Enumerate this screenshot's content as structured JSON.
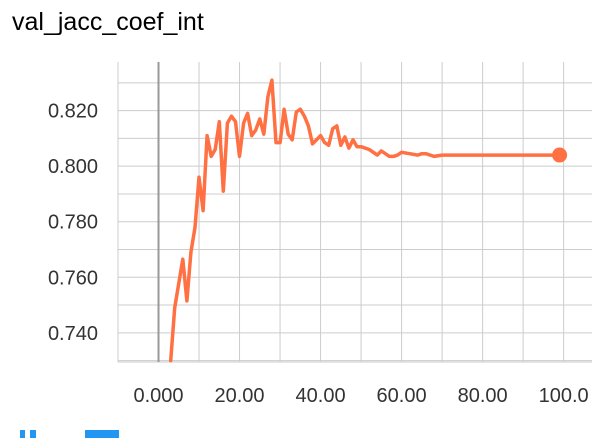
{
  "chart_title": "val_jacc_coef_int",
  "icons": {
    "fit_domain": "fit-domain-icon",
    "log_scale": "log-scale-icon",
    "expand": "expand-chart-icon"
  },
  "colors": {
    "series": "#ff7043",
    "grid": "#cccccc",
    "zero_line": "#999999",
    "toolbar": "#2196f3"
  },
  "chart_data": {
    "type": "line",
    "title": "val_jacc_coef_int",
    "xlabel": "",
    "ylabel": "",
    "xlim": [
      -10,
      107
    ],
    "ylim": [
      0.7295,
      0.8375
    ],
    "x_ticks": [
      0,
      20,
      40,
      60,
      80,
      100
    ],
    "x_tick_labels": [
      "0.000",
      "20.00",
      "40.00",
      "60.00",
      "80.00",
      "100.0"
    ],
    "y_ticks": [
      0.74,
      0.76,
      0.78,
      0.8,
      0.82
    ],
    "y_tick_labels": [
      "0.740",
      "0.760",
      "0.780",
      "0.800",
      "0.820"
    ],
    "grid": true,
    "series": [
      {
        "color": "#ff7043",
        "x": [
          3,
          4,
          6,
          7,
          8,
          9,
          10,
          11,
          12,
          13,
          14,
          15,
          16,
          17,
          18,
          19,
          20,
          21,
          22,
          23,
          24,
          25,
          26,
          27,
          28,
          29,
          30,
          31,
          32,
          33,
          34,
          35,
          36,
          37,
          38,
          39,
          40,
          41,
          42,
          43,
          44,
          45,
          46,
          47,
          48,
          49,
          50,
          52,
          54,
          55,
          57,
          58,
          59,
          60,
          62,
          64,
          65,
          66,
          68,
          70,
          75,
          80,
          85,
          90,
          95,
          99
        ],
        "y": [
          0.73,
          0.749,
          0.7665,
          0.7515,
          0.769,
          0.778,
          0.796,
          0.784,
          0.811,
          0.8035,
          0.806,
          0.816,
          0.791,
          0.8155,
          0.818,
          0.816,
          0.8035,
          0.8155,
          0.819,
          0.811,
          0.813,
          0.817,
          0.8115,
          0.825,
          0.831,
          0.8085,
          0.8085,
          0.8205,
          0.8115,
          0.8095,
          0.8195,
          0.8205,
          0.818,
          0.8145,
          0.808,
          0.8095,
          0.811,
          0.8085,
          0.8075,
          0.8135,
          0.8145,
          0.8075,
          0.8105,
          0.8065,
          0.8095,
          0.807,
          0.807,
          0.806,
          0.804,
          0.8055,
          0.8035,
          0.8035,
          0.804,
          0.805,
          0.8045,
          0.804,
          0.8045,
          0.8045,
          0.8035,
          0.804,
          0.804,
          0.804,
          0.804,
          0.804,
          0.804,
          0.804
        ]
      }
    ]
  }
}
